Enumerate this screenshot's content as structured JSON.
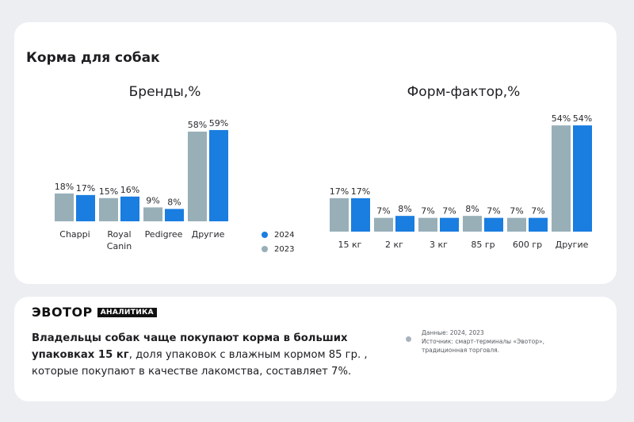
{
  "header": {
    "title": "Корма для собак"
  },
  "colors": {
    "y2024": "#1a7de0",
    "y2023": "#98afb8"
  },
  "legend": {
    "items": [
      {
        "label": "2024"
      },
      {
        "label": "2023"
      }
    ]
  },
  "chart_data": [
    {
      "type": "bar",
      "title": "Бренды,%",
      "categories": [
        "Chappi",
        "Royal Canin",
        "Pedigree",
        "Другие"
      ],
      "series": [
        {
          "name": "2023",
          "values": [
            18,
            15,
            9,
            58
          ],
          "labels": [
            "18%",
            "15%",
            "9%",
            "58%"
          ]
        },
        {
          "name": "2024",
          "values": [
            17,
            16,
            8,
            59
          ],
          "labels": [
            "17%",
            "16%",
            "8%",
            "59%"
          ]
        }
      ],
      "xlabel": "",
      "ylabel": ""
    },
    {
      "type": "bar",
      "title": "Форм-фактор,%",
      "categories": [
        "15 кг",
        "2 кг",
        "3 кг",
        "85 гр",
        "600 гр",
        "Другие"
      ],
      "series": [
        {
          "name": "2023",
          "values": [
            17,
            7,
            7,
            8,
            7,
            54
          ],
          "labels": [
            "17%",
            "7%",
            "7%",
            "8%",
            "7%",
            "54%"
          ]
        },
        {
          "name": "2024",
          "values": [
            17,
            8,
            7,
            7,
            7,
            54
          ],
          "labels": [
            "17%",
            "8%",
            "7%",
            "7%",
            "7%",
            "54%"
          ]
        }
      ],
      "xlabel": "",
      "ylabel": ""
    }
  ],
  "footer": {
    "brand": "ЭВОТОР",
    "brand_tag": "АНАЛИТИКА",
    "summary_bold": "Владельцы собак чаще покупают корма в больших упаковках 15 кг",
    "summary_rest": ", доля упаковок с влажным кормом 85 гр. , которые покупают в качестве  лакомства, составляет 7%.",
    "source_lines": [
      "Данные: 2024, 2023",
      "Источник: смарт-терминалы «Эвотор»,",
      "традиционная торговля."
    ]
  }
}
